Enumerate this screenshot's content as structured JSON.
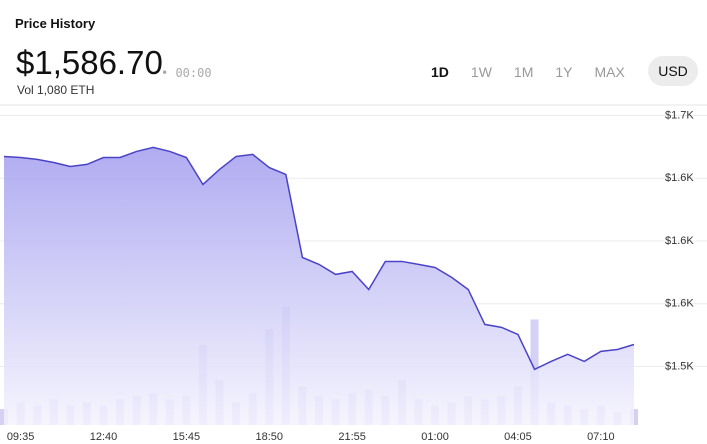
{
  "header": {
    "title": "Price History",
    "price": "$1,586.70",
    "time": "00:00",
    "volume": "Vol 1,080 ETH",
    "ranges": [
      "1D",
      "1W",
      "1M",
      "1Y",
      "MAX"
    ],
    "currency": "USD"
  },
  "chart_data": {
    "type": "line",
    "x": [
      "08:58",
      "09:35",
      "10:12",
      "10:49",
      "11:26",
      "12:03",
      "12:40",
      "13:17",
      "13:54",
      "14:31",
      "15:08",
      "15:45",
      "16:22",
      "16:59",
      "17:36",
      "18:13",
      "18:50",
      "19:27",
      "20:04",
      "20:41",
      "21:18",
      "21:55",
      "22:32",
      "23:09",
      "23:46",
      "00:23",
      "01:00",
      "01:37",
      "02:14",
      "02:51",
      "03:28",
      "04:05",
      "04:42",
      "05:19",
      "05:56",
      "06:33",
      "07:10",
      "07:47",
      "08:24"
    ],
    "series": [
      {
        "name": "Price",
        "color": "#4a43c8",
        "values": [
          1635.4,
          1634.9,
          1634.0,
          1632.5,
          1630.6,
          1631.6,
          1634.9,
          1634.9,
          1637.8,
          1639.7,
          1637.8,
          1634.9,
          1622.0,
          1629.2,
          1635.4,
          1636.4,
          1630.1,
          1626.8,
          1587.1,
          1583.8,
          1579.0,
          1580.4,
          1571.8,
          1585.2,
          1585.2,
          1583.8,
          1582.3,
          1577.6,
          1571.8,
          1555.1,
          1553.7,
          1550.3,
          1533.6,
          1537.4,
          1540.8,
          1537.4,
          1542.2,
          1543.1,
          1545.5
        ]
      },
      {
        "name": "Volume",
        "color": "#c9c6f2",
        "axis": "y2",
        "values": [
          5,
          7,
          6,
          8,
          6,
          7,
          6,
          8,
          9,
          10,
          8,
          9,
          25,
          14,
          7,
          10,
          30,
          37,
          12,
          9,
          8,
          10,
          11,
          9,
          14,
          8,
          6,
          7,
          9,
          8,
          9,
          12,
          33,
          7,
          6,
          5,
          6,
          4,
          5
        ]
      }
    ],
    "ylim": [
      1507,
      1660
    ],
    "yticks": [
      {
        "value": 1655,
        "label": "$1.7K"
      },
      {
        "value": 1625,
        "label": "$1.6K"
      },
      {
        "value": 1595,
        "label": "$1.6K"
      },
      {
        "value": 1565,
        "label": "$1.6K"
      },
      {
        "value": 1535,
        "label": "$1.5K"
      }
    ],
    "y2lim": [
      0,
      100
    ],
    "xticks": [
      "09:35",
      "12:40",
      "15:45",
      "18:50",
      "21:55",
      "01:00",
      "04:05",
      "07:10"
    ],
    "grid": true
  }
}
